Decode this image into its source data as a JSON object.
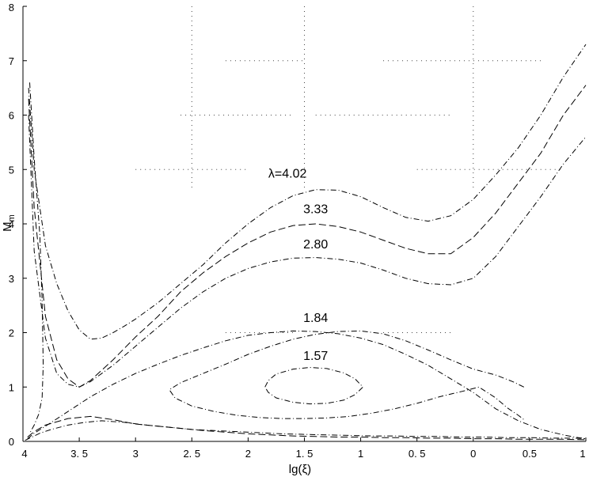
{
  "chart_data": {
    "type": "line",
    "title": "",
    "xlabel": "lg(ξ)",
    "ylabel": "M_m",
    "ylabel_main": "M",
    "ylabel_sub": "m",
    "xlim": [
      4,
      -1
    ],
    "ylim": [
      0,
      8
    ],
    "grid": "partial dotted",
    "x_ticks": [
      4,
      3.5,
      3,
      2.5,
      2,
      1.5,
      1,
      0.5,
      0,
      -0.5,
      -1
    ],
    "x_tick_labels": [
      "4",
      "3. 5",
      "3",
      "2. 5",
      "2",
      "1. 5",
      "1",
      "0. 5",
      "0",
      "0.5",
      "1"
    ],
    "y_ticks": [
      0,
      1,
      2,
      3,
      4,
      5,
      6,
      7,
      8
    ],
    "y_tick_labels": [
      "0",
      "1",
      "2",
      "3",
      "4",
      "5",
      "6",
      "7",
      "8"
    ],
    "series": [
      {
        "name": "λ=4.02",
        "dash": "dashdot",
        "label_at": [
          1.65,
          4.85
        ],
        "x": [
          3.95,
          3.9,
          3.8,
          3.7,
          3.6,
          3.5,
          3.4,
          3.3,
          3.2,
          3.1,
          3.0,
          2.8,
          2.6,
          2.4,
          2.2,
          2.0,
          1.8,
          1.6,
          1.4,
          1.2,
          1.0,
          0.8,
          0.6,
          0.4,
          0.2,
          0.0,
          -0.2,
          -0.4,
          -0.6,
          -0.8,
          -1.0
        ],
        "y": [
          6.5,
          5.0,
          3.6,
          2.9,
          2.4,
          2.05,
          1.88,
          1.9,
          2.0,
          2.12,
          2.25,
          2.55,
          2.9,
          3.25,
          3.65,
          4.0,
          4.3,
          4.52,
          4.63,
          4.62,
          4.5,
          4.3,
          4.12,
          4.05,
          4.15,
          4.45,
          4.9,
          5.4,
          6.0,
          6.7,
          7.3
        ]
      },
      {
        "name": "3.33",
        "dash": "longdash",
        "label_at": [
          1.4,
          4.2
        ],
        "x": [
          3.95,
          3.9,
          3.8,
          3.7,
          3.6,
          3.5,
          3.4,
          3.2,
          3.0,
          2.8,
          2.6,
          2.4,
          2.2,
          2.0,
          1.8,
          1.6,
          1.4,
          1.2,
          1.0,
          0.8,
          0.6,
          0.4,
          0.2,
          0.0,
          -0.2,
          -0.4,
          -0.6,
          -0.8,
          -1.0
        ],
        "y": [
          6.3,
          4.3,
          2.3,
          1.5,
          1.15,
          1.0,
          1.12,
          1.5,
          1.92,
          2.3,
          2.75,
          3.1,
          3.4,
          3.65,
          3.85,
          3.97,
          4.0,
          3.95,
          3.85,
          3.7,
          3.55,
          3.45,
          3.45,
          3.75,
          4.2,
          4.75,
          5.3,
          6.0,
          6.55
        ]
      },
      {
        "name": "2.80",
        "dash": "dashdot",
        "label_at": [
          1.4,
          3.55
        ],
        "x": [
          3.95,
          3.9,
          3.8,
          3.7,
          3.6,
          3.5,
          3.4,
          3.2,
          3.0,
          2.8,
          2.6,
          2.4,
          2.2,
          2.0,
          1.8,
          1.6,
          1.4,
          1.2,
          1.0,
          0.8,
          0.6,
          0.4,
          0.2,
          0.0,
          -0.2,
          -0.4,
          -0.6,
          -0.8,
          -1.0
        ],
        "y": [
          6.0,
          3.5,
          1.9,
          1.25,
          1.05,
          1.0,
          1.1,
          1.4,
          1.75,
          2.1,
          2.45,
          2.75,
          3.0,
          3.18,
          3.3,
          3.37,
          3.38,
          3.35,
          3.28,
          3.15,
          3.0,
          2.9,
          2.88,
          3.0,
          3.4,
          3.95,
          4.5,
          5.1,
          5.6
        ]
      },
      {
        "name": "1.84",
        "dash": "dashdot",
        "label_at": [
          1.4,
          2.2
        ],
        "x": [
          -0.45,
          -0.35,
          -0.2,
          0.0,
          0.2,
          0.4,
          0.6,
          0.8,
          1.0,
          1.2,
          1.4,
          1.6,
          1.8,
          2.0,
          2.2,
          2.4,
          2.6,
          2.7,
          2.65,
          2.5,
          2.3,
          2.1,
          1.9,
          1.7,
          1.5,
          1.3,
          1.1,
          0.9,
          0.7,
          0.5,
          0.3,
          0.1,
          -0.05,
          -0.2,
          -0.3,
          -0.4,
          -0.45
        ],
        "y": [
          1.0,
          1.1,
          1.22,
          1.33,
          1.5,
          1.68,
          1.85,
          1.98,
          2.03,
          2.02,
          1.97,
          1.88,
          1.75,
          1.6,
          1.42,
          1.25,
          1.08,
          0.95,
          0.8,
          0.65,
          0.55,
          0.48,
          0.44,
          0.42,
          0.42,
          0.43,
          0.46,
          0.52,
          0.6,
          0.7,
          0.82,
          0.92,
          1.0,
          0.8,
          0.62,
          0.48,
          0.4
        ]
      },
      {
        "name": "1.57",
        "dash": "dashdot",
        "label_at": [
          1.4,
          1.5
        ],
        "x": [
          1.85,
          1.82,
          1.75,
          1.6,
          1.45,
          1.3,
          1.15,
          1.05,
          0.98,
          1.05,
          1.15,
          1.3,
          1.45,
          1.6,
          1.75,
          1.82,
          1.85
        ],
        "y": [
          1.0,
          1.12,
          1.24,
          1.33,
          1.36,
          1.34,
          1.26,
          1.15,
          1.0,
          0.86,
          0.76,
          0.7,
          0.69,
          0.72,
          0.8,
          0.9,
          1.0
        ]
      },
      {
        "name": "",
        "dash": "dashdot",
        "label_at": null,
        "x": [
          3.96,
          3.9,
          3.8,
          3.6,
          3.4,
          3.2,
          3.0,
          2.8,
          2.6,
          2.4,
          2.2,
          2.0,
          1.8,
          1.6,
          1.4,
          1.2,
          1.0,
          0.8,
          0.6,
          0.4,
          0.2,
          0.0,
          -0.2,
          -0.4,
          -0.6,
          -0.8,
          -0.9,
          -1.0
        ],
        "y": [
          0.05,
          0.15,
          0.28,
          0.55,
          0.82,
          1.05,
          1.25,
          1.42,
          1.58,
          1.72,
          1.85,
          1.95,
          2.0,
          2.03,
          2.02,
          1.98,
          1.9,
          1.78,
          1.6,
          1.4,
          1.15,
          0.9,
          0.6,
          0.38,
          0.22,
          0.12,
          0.08,
          0.05
        ]
      },
      {
        "name": "",
        "dash": "longdash",
        "label_at": null,
        "x": [
          3.96,
          3.9,
          3.8,
          3.6,
          3.4,
          3.2,
          3.0,
          2.8,
          2.6,
          2.4,
          2.2,
          2.0,
          1.8,
          1.6,
          1.4,
          1.2,
          1.0,
          0.8,
          0.6,
          0.4,
          0.2,
          0.0,
          -0.2,
          -0.4,
          -0.6,
          -0.8,
          -1.0
        ],
        "y": [
          0.08,
          0.18,
          0.3,
          0.42,
          0.46,
          0.4,
          0.32,
          0.28,
          0.24,
          0.2,
          0.17,
          0.14,
          0.12,
          0.1,
          0.09,
          0.08,
          0.08,
          0.07,
          0.07,
          0.06,
          0.06,
          0.05,
          0.05,
          0.04,
          0.04,
          0.04,
          0.03
        ]
      },
      {
        "name": "",
        "dash": "dashdot",
        "label_at": null,
        "x": [
          3.94,
          3.9,
          3.85,
          3.83,
          3.82,
          3.83,
          3.86,
          3.9,
          3.94
        ],
        "y": [
          6.6,
          5.2,
          3.8,
          2.6,
          1.4,
          0.8,
          0.5,
          0.3,
          0.15
        ]
      },
      {
        "name": "",
        "dash": "dashdot",
        "label_at": null,
        "x": [
          3.98,
          3.92,
          3.85,
          3.75,
          3.6,
          3.45,
          3.3,
          3.1,
          2.9,
          2.7,
          2.5,
          2.3,
          2.1,
          1.9,
          1.7,
          1.5,
          1.3,
          1.1,
          0.9,
          0.7,
          0.5,
          0.3,
          0.1,
          -0.1,
          -0.3,
          -0.5,
          -0.7,
          -0.9,
          -1.0
        ],
        "y": [
          0.02,
          0.08,
          0.15,
          0.22,
          0.3,
          0.35,
          0.38,
          0.35,
          0.3,
          0.26,
          0.22,
          0.2,
          0.18,
          0.16,
          0.14,
          0.13,
          0.12,
          0.11,
          0.1,
          0.1,
          0.09,
          0.09,
          0.08,
          0.08,
          0.07,
          0.07,
          0.06,
          0.06,
          0.05
        ]
      }
    ]
  }
}
